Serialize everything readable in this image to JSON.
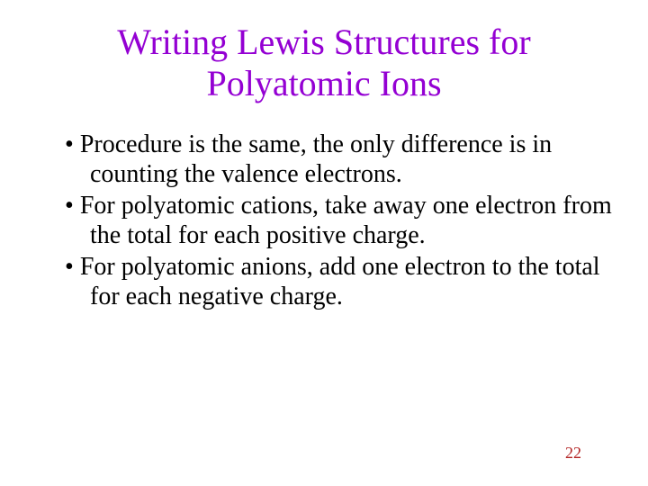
{
  "title": {
    "line1": "Writing Lewis Structures for",
    "line2": "Polyatomic Ions",
    "color": "#9400d3",
    "fontsize": 40
  },
  "bullets": [
    "Procedure is the same, the only difference is in counting the valence electrons.",
    "For polyatomic cations, take away one electron from the total for each positive charge.",
    "For polyatomic anions, add one electron to the total for each negative charge."
  ],
  "body": {
    "color": "#000000",
    "fontsize": 28
  },
  "page_number": {
    "value": "22",
    "color": "#b22222",
    "fontsize": 18
  },
  "background_color": "#ffffff"
}
